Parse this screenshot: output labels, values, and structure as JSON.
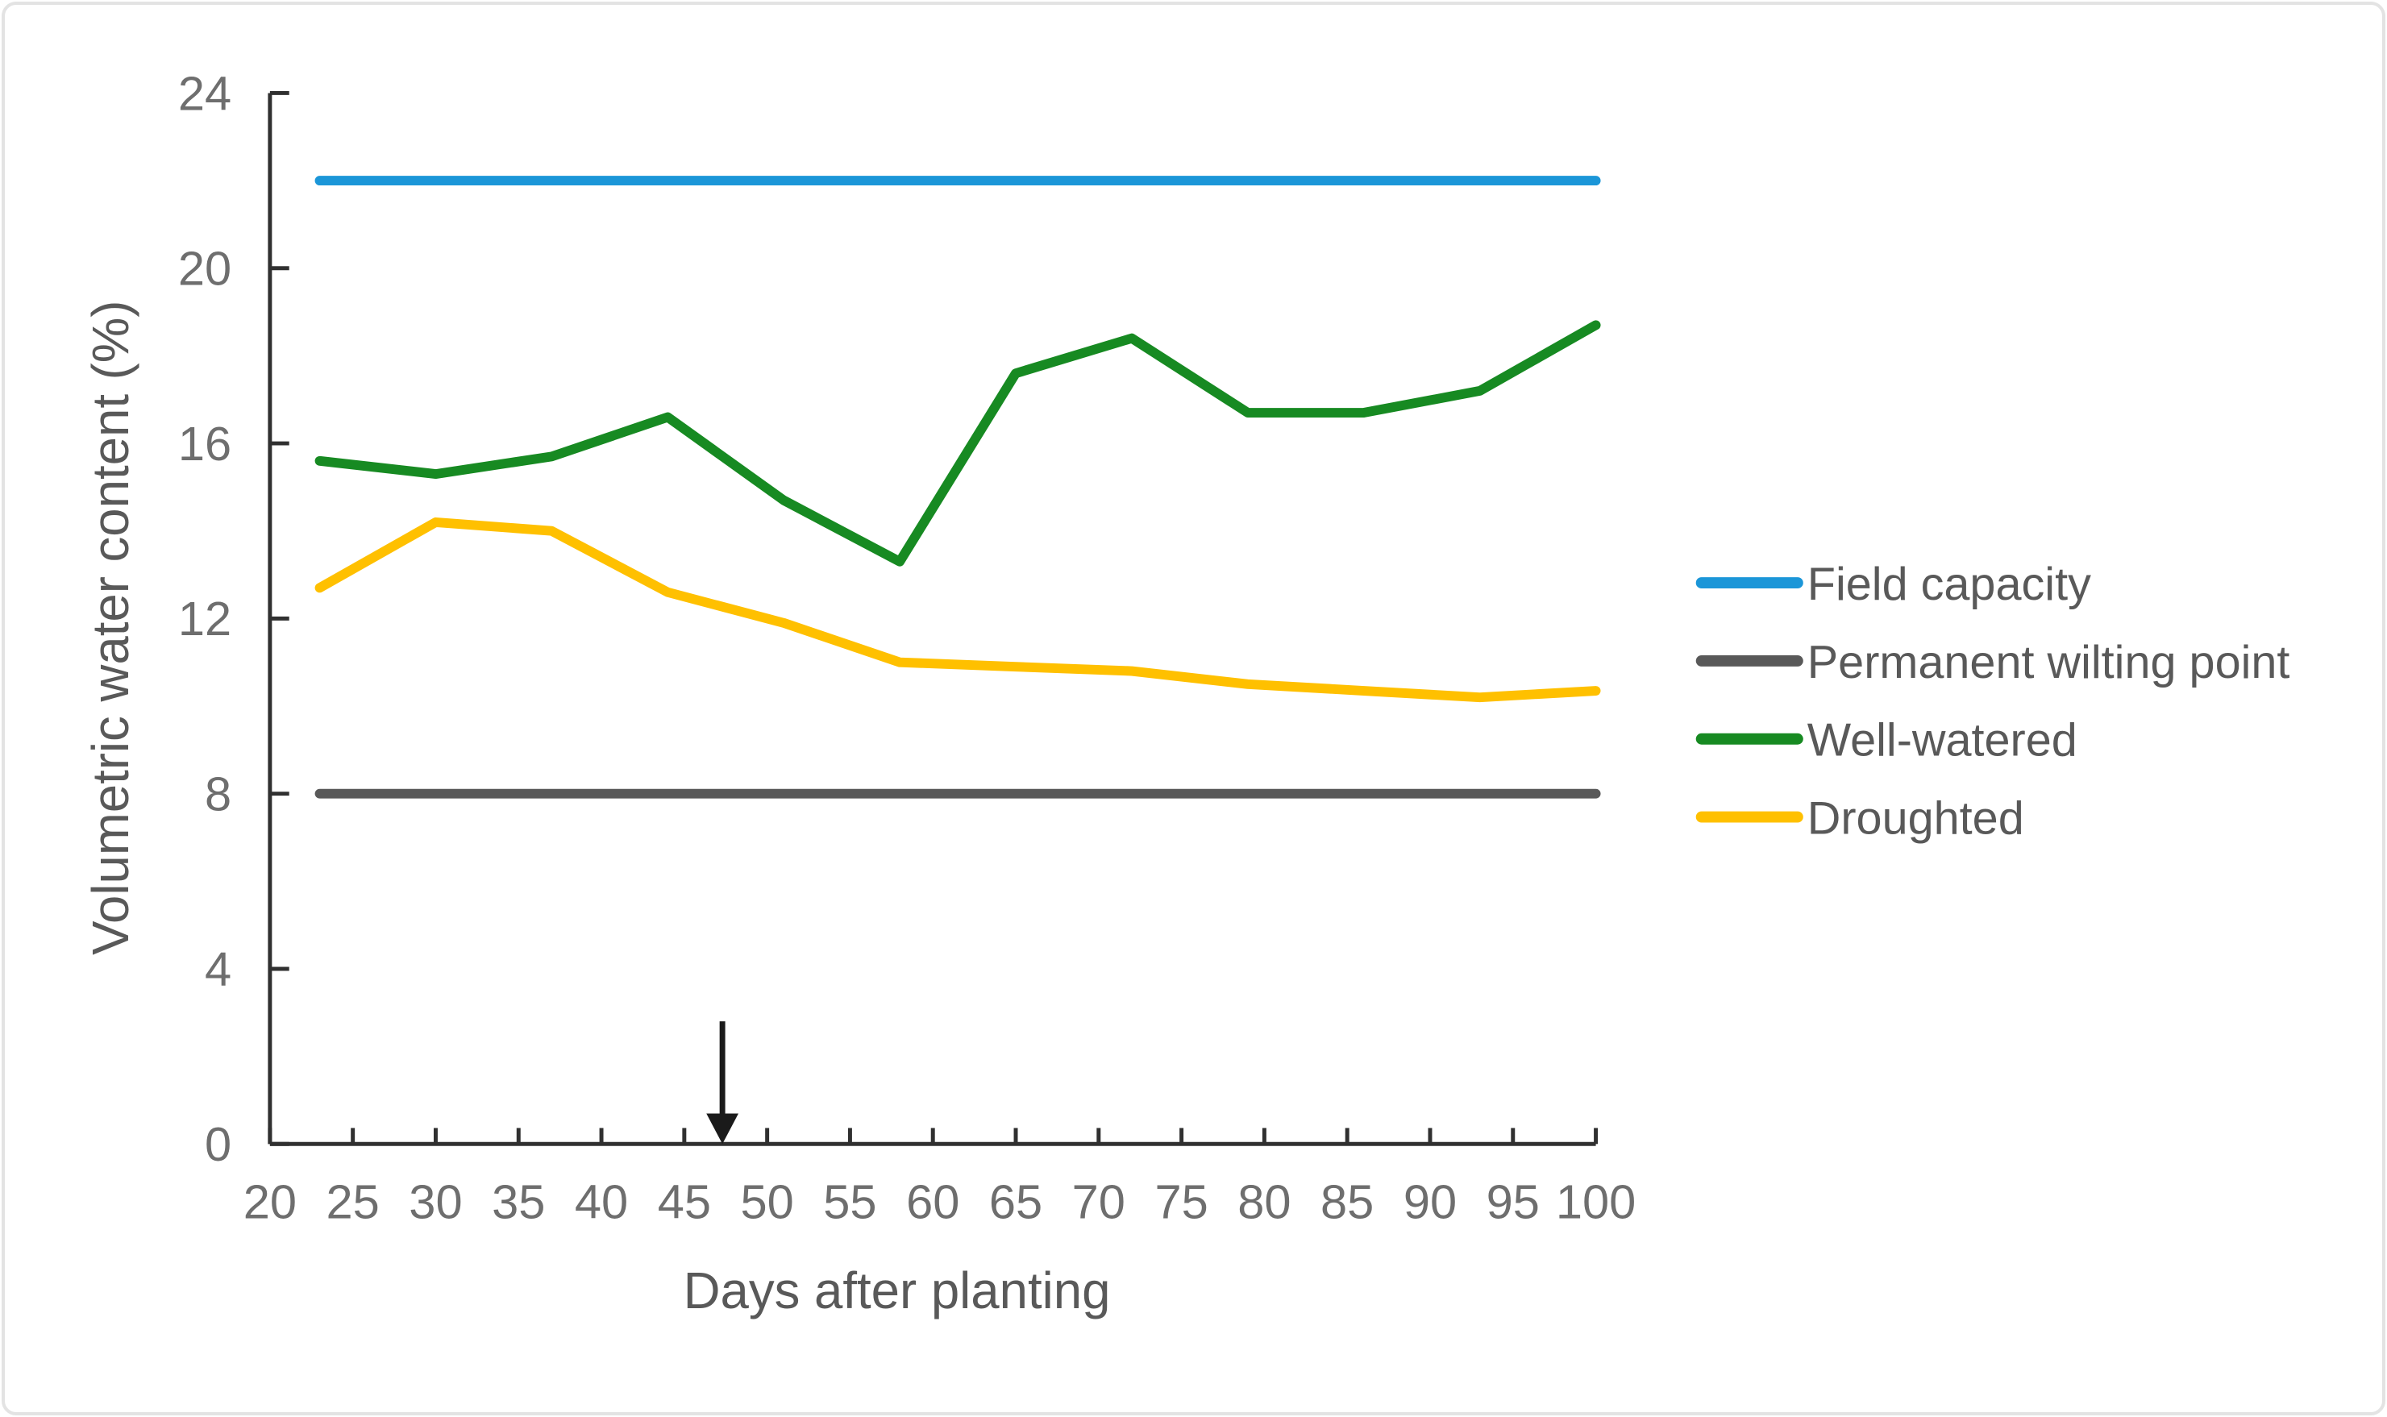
{
  "chart_data": {
    "type": "line",
    "title": "",
    "xlabel": "Days after planting",
    "ylabel": "Volumetric water content (%)",
    "x_axis": {
      "min": 20,
      "max": 100,
      "tick_step": 5,
      "ticks": [
        20,
        25,
        30,
        35,
        40,
        45,
        50,
        55,
        60,
        65,
        70,
        75,
        80,
        85,
        90,
        95,
        100
      ]
    },
    "y_axis": {
      "min": 0,
      "max": 24,
      "tick_step": 4,
      "ticks": [
        0,
        4,
        8,
        12,
        16,
        20,
        24
      ]
    },
    "grid": false,
    "legend_position": "right-middle",
    "x": [
      23,
      30,
      37,
      44,
      51,
      58,
      65,
      72,
      79,
      86,
      93,
      100
    ],
    "series": [
      {
        "name": "Field capacity",
        "type": "reference-line",
        "value": 22,
        "color": "#1b96d8"
      },
      {
        "name": "Permanent wilting point",
        "type": "reference-line",
        "value": 8,
        "color": "#595959"
      },
      {
        "name": "Well-watered",
        "type": "line",
        "color": "#178a22",
        "values": [
          15.6,
          15.3,
          15.7,
          16.6,
          14.7,
          13.3,
          17.6,
          18.4,
          16.7,
          16.7,
          17.2,
          18.7
        ]
      },
      {
        "name": "Droughted",
        "type": "line",
        "color": "#ffc000",
        "values": [
          12.7,
          14.2,
          14.0,
          12.6,
          11.9,
          11.0,
          10.9,
          10.8,
          10.5,
          10.35,
          10.2,
          10.35
        ]
      }
    ],
    "annotations": [
      {
        "type": "arrow-down",
        "x": 47.3,
        "y_top": 2.8,
        "y_bottom": 0
      }
    ]
  },
  "colors": {
    "axis": "#303030",
    "tick_label": "#6e6e6e",
    "title_text": "#595959",
    "legend_text": "#595959",
    "arrow": "#1a1a1a",
    "card_border": "#e3e3e3",
    "background": "#ffffff"
  }
}
